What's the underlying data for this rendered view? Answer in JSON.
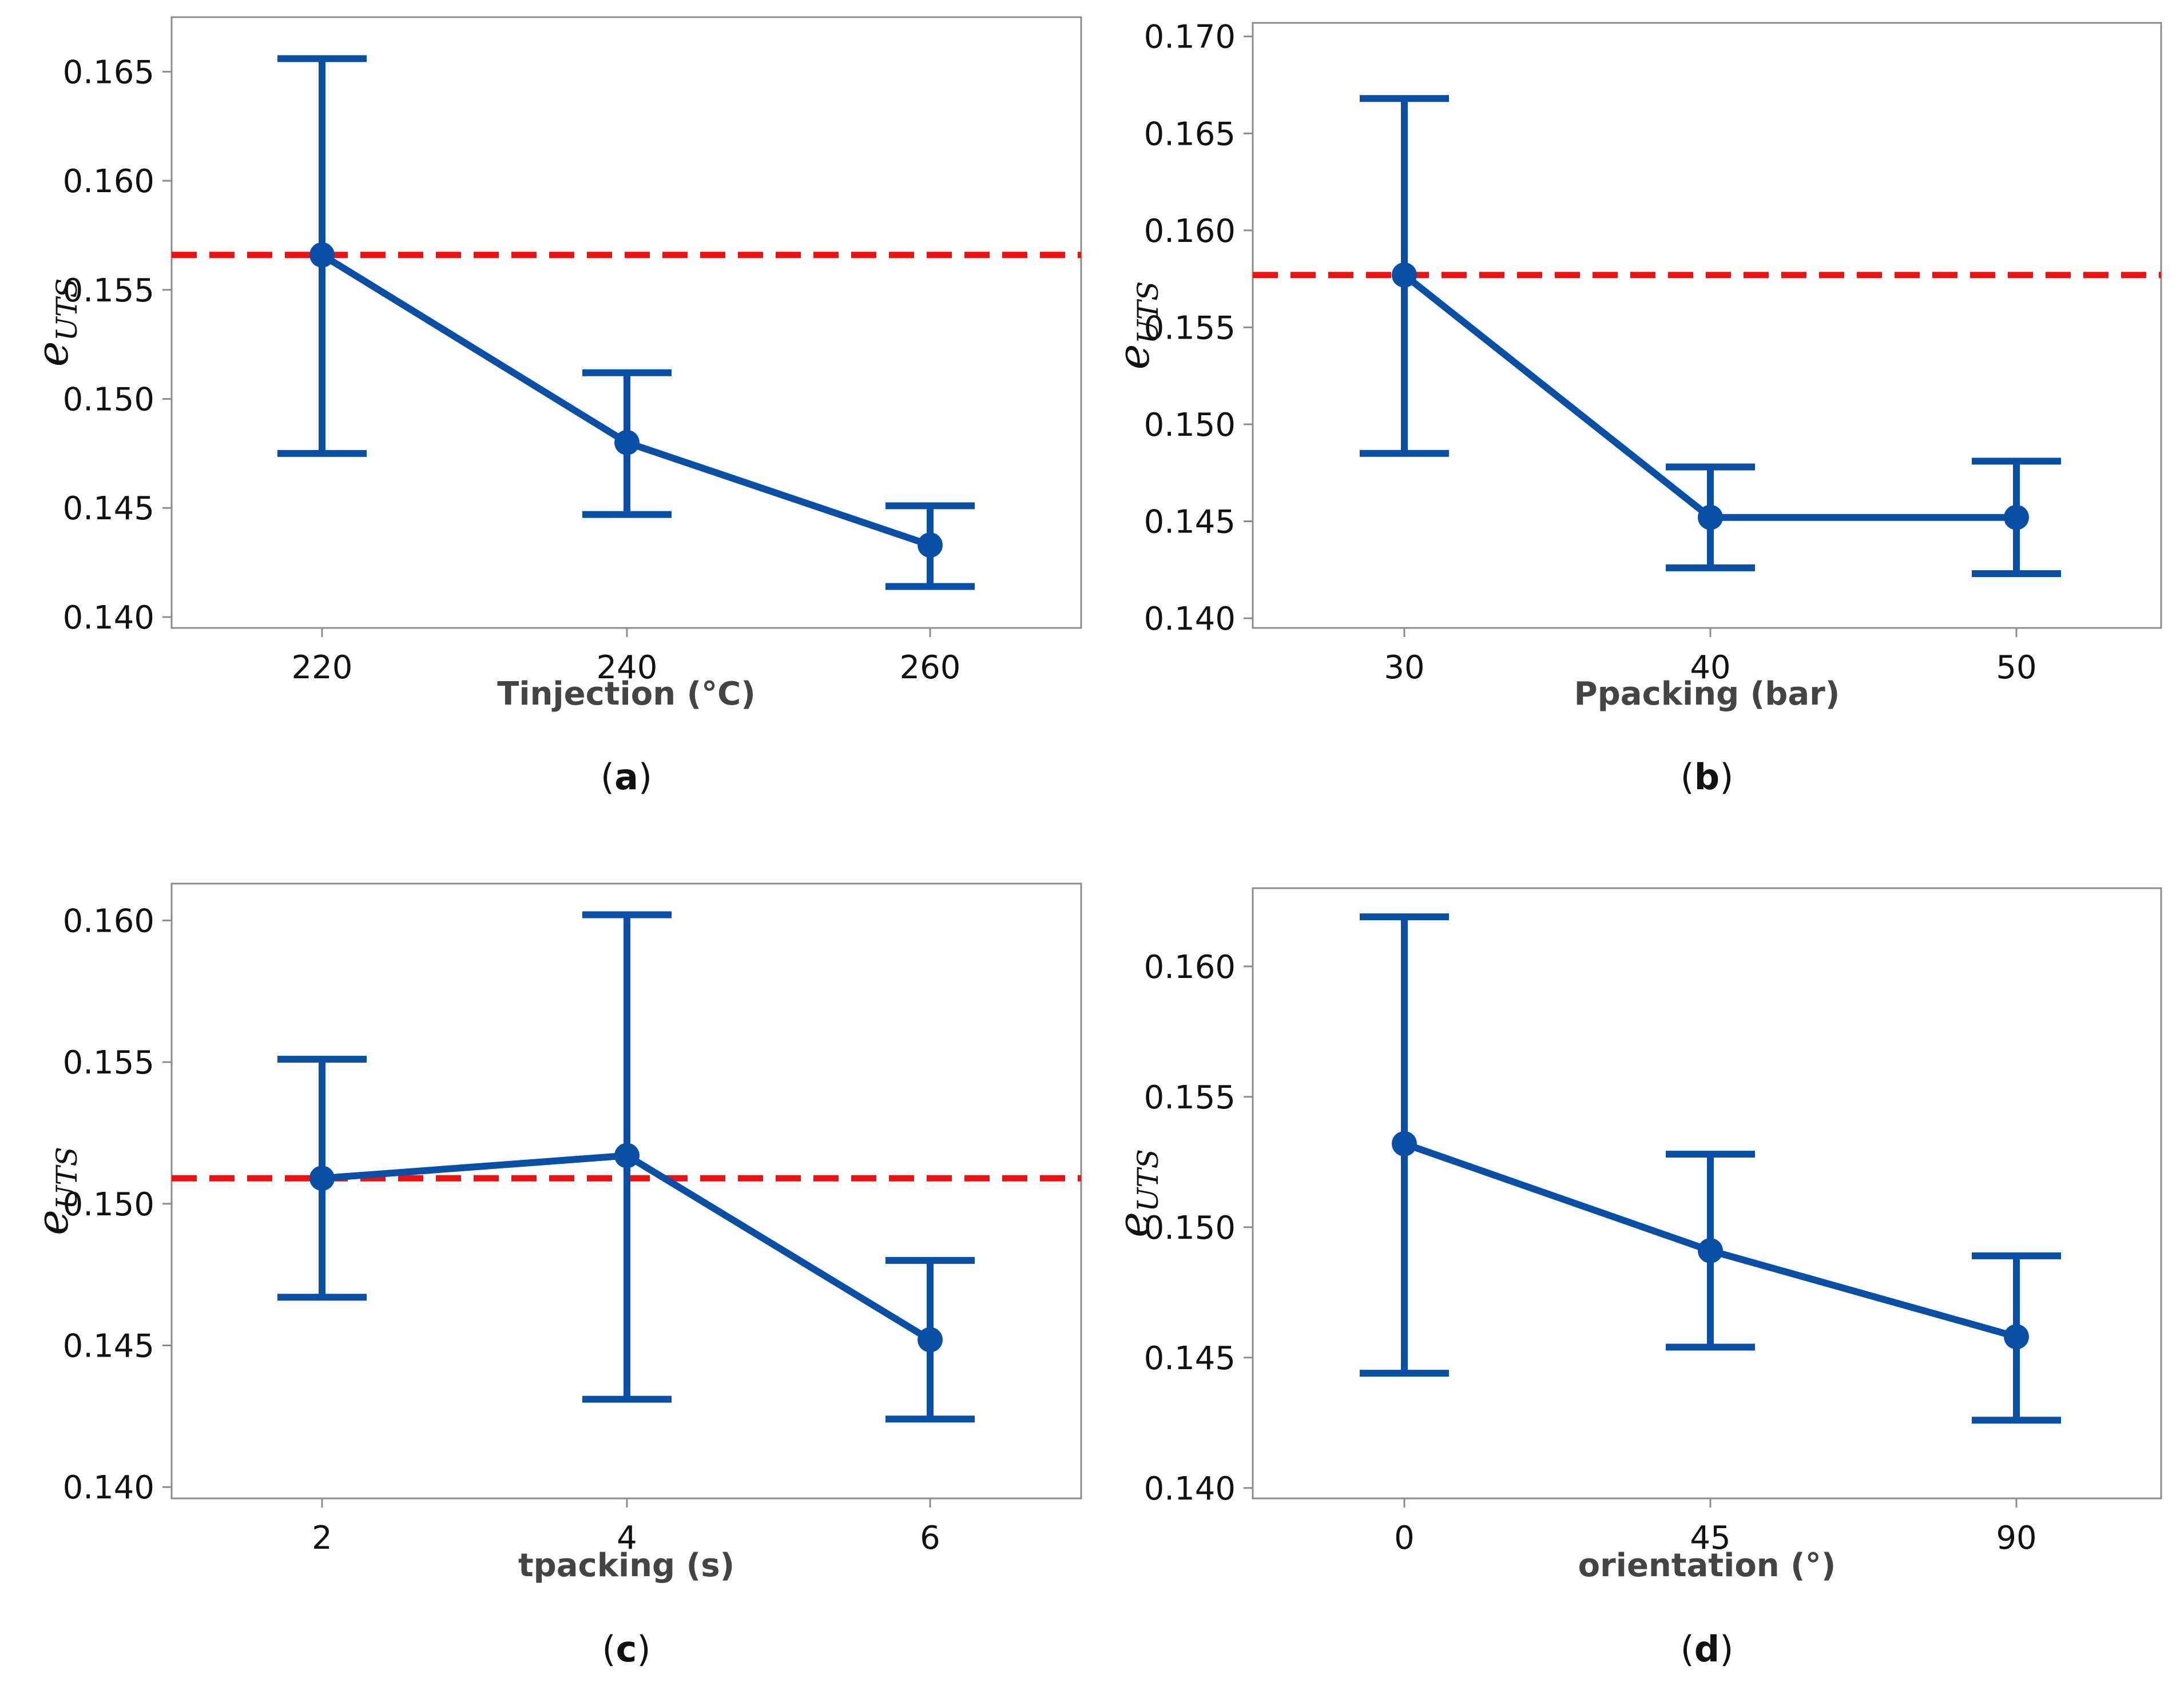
{
  "chart_data": [
    {
      "id": "a",
      "type": "line",
      "caption_letter": "a",
      "categories": [
        "220",
        "240",
        "260"
      ],
      "values": [
        0.1566,
        0.148,
        0.1433
      ],
      "error_upper": [
        0.1656,
        0.1512,
        0.1451
      ],
      "error_lower": [
        0.1475,
        0.1447,
        0.1414
      ],
      "reference_line": 0.1566,
      "xlabel": "Tinjection (°C)",
      "ylabel_main": "e",
      "ylabel_sub": "UTS",
      "ylim": [
        0.1395,
        0.1675
      ],
      "yticks": [
        0.14,
        0.145,
        0.15,
        0.155,
        0.16,
        0.165
      ],
      "ytick_labels": [
        "0.140",
        "0.145",
        "0.150",
        "0.155",
        "0.160",
        "0.165"
      ],
      "grid": false
    },
    {
      "id": "b",
      "type": "line",
      "caption_letter": "b",
      "categories": [
        "30",
        "40",
        "50"
      ],
      "values": [
        0.1577,
        0.1452,
        0.1452
      ],
      "error_upper": [
        0.1668,
        0.1478,
        0.1481
      ],
      "error_lower": [
        0.1485,
        0.1426,
        0.1423
      ],
      "reference_line": 0.1577,
      "xlabel": "Ppacking (bar)",
      "ylabel_main": "e",
      "ylabel_sub": "UTS",
      "ylim": [
        0.1395,
        0.1707
      ],
      "yticks": [
        0.14,
        0.145,
        0.15,
        0.155,
        0.16,
        0.165,
        0.17
      ],
      "ytick_labels": [
        "0.140",
        "0.145",
        "0.150",
        "0.155",
        "0.160",
        "0.165",
        "0.170"
      ],
      "grid": false
    },
    {
      "id": "c",
      "type": "line",
      "caption_letter": "c",
      "categories": [
        "2",
        "4",
        "6"
      ],
      "values": [
        0.1509,
        0.1517,
        0.1452
      ],
      "error_upper": [
        0.1551,
        0.1602,
        0.148
      ],
      "error_lower": [
        0.1467,
        0.1431,
        0.1424
      ],
      "reference_line": 0.1509,
      "xlabel": "tpacking (s)",
      "ylabel_main": "e",
      "ylabel_sub": "UTS",
      "ylim": [
        0.1396,
        0.1613
      ],
      "yticks": [
        0.14,
        0.145,
        0.15,
        0.155,
        0.16
      ],
      "ytick_labels": [
        "0.140",
        "0.145",
        "0.150",
        "0.155",
        "0.160"
      ],
      "grid": false
    },
    {
      "id": "d",
      "type": "line",
      "caption_letter": "d",
      "categories": [
        "0",
        "45",
        "90"
      ],
      "values": [
        0.1532,
        0.1491,
        0.1458
      ],
      "error_upper": [
        0.1619,
        0.1528,
        0.1489
      ],
      "error_lower": [
        0.1444,
        0.1454,
        0.1426
      ],
      "reference_line": null,
      "xlabel": "orientation (°)",
      "ylabel_main": "e",
      "ylabel_sub": "UTS",
      "ylim": [
        0.1396,
        0.163
      ],
      "yticks": [
        0.14,
        0.145,
        0.15,
        0.155,
        0.16
      ],
      "ytick_labels": [
        "0.140",
        "0.145",
        "0.150",
        "0.155",
        "0.160"
      ],
      "grid": false
    }
  ],
  "colors": {
    "series": "#0a4fa6",
    "reference_line": "#ee1111",
    "frame": "#8c8c8c",
    "tick_text": "#111111",
    "axis_label": "#444444"
  },
  "captions": {
    "open": "(",
    "close": ")"
  }
}
